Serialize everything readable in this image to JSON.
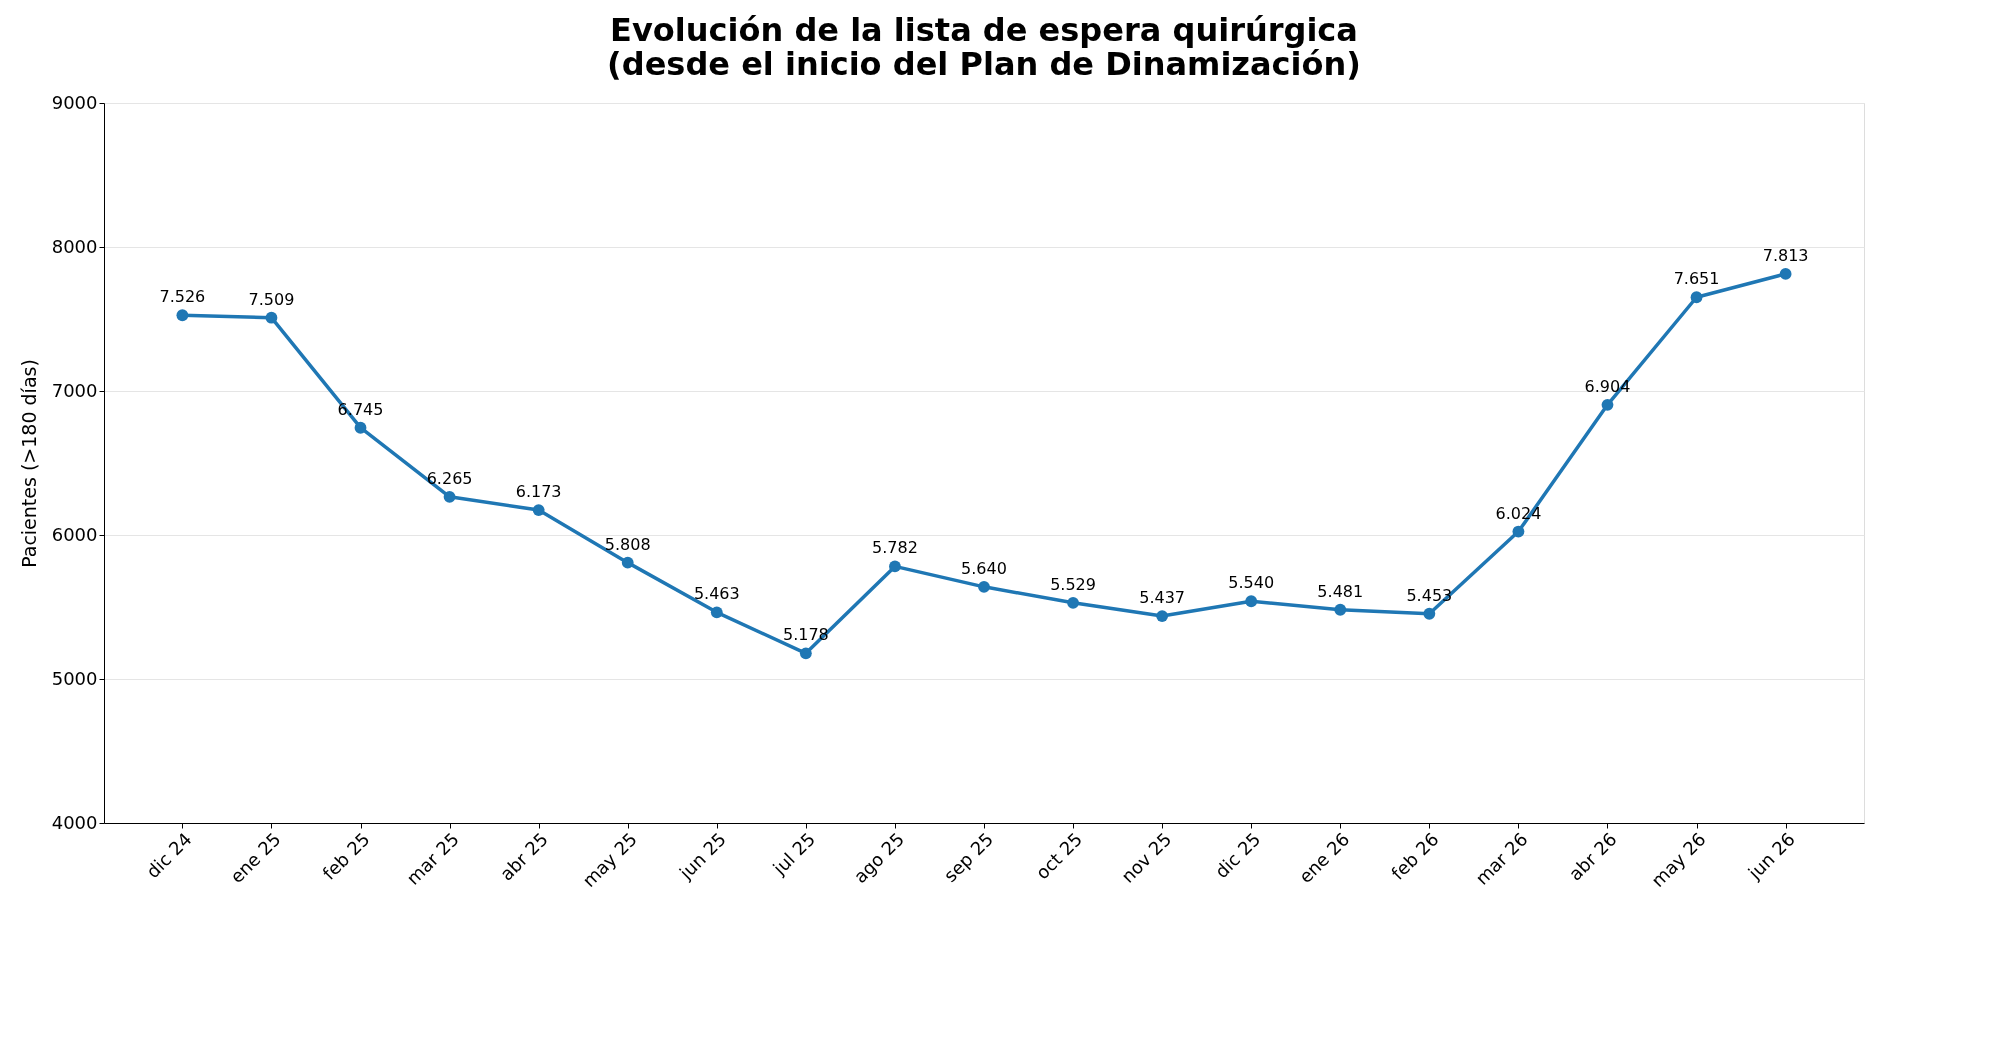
{
  "chart_data": {
    "type": "line",
    "title": "Evolución de la lista de espera quirúrgica\n(desde el inicio del Plan de Dinamización)",
    "ylabel": "Pacientes (>180 días)",
    "categories": [
      "dic 24",
      "ene 25",
      "feb 25",
      "mar 25",
      "abr 25",
      "may 25",
      "jun 25",
      "jul 25",
      "ago 25",
      "sep 25",
      "oct 25",
      "nov 25",
      "dic 25",
      "ene 26",
      "feb 26",
      "mar 26",
      "abr 26",
      "may 26",
      "jun 26"
    ],
    "series": [
      {
        "color": "#1f77b4",
        "values": [
          7526,
          7509,
          6745,
          6265,
          6173,
          5808,
          5463,
          5178,
          5782,
          5640,
          5529,
          5437,
          5540,
          5481,
          5453,
          6024,
          6904,
          7651,
          7813
        ]
      }
    ],
    "value_labels": [
      "7.526",
      "7.509",
      "6.745",
      "6.265",
      "6.173",
      "5.808",
      "5.463",
      "5.178",
      "5.782",
      "5.640",
      "5.529",
      "5.437",
      "5.540",
      "5.481",
      "5.453",
      "6.024",
      "6.904",
      "7.651",
      "7.813"
    ],
    "ylim": [
      4000,
      9000
    ],
    "yticks": [
      4000,
      5000,
      6000,
      7000,
      8000,
      9000
    ],
    "grid": "y",
    "marker": "circle",
    "line_style": "solid"
  }
}
